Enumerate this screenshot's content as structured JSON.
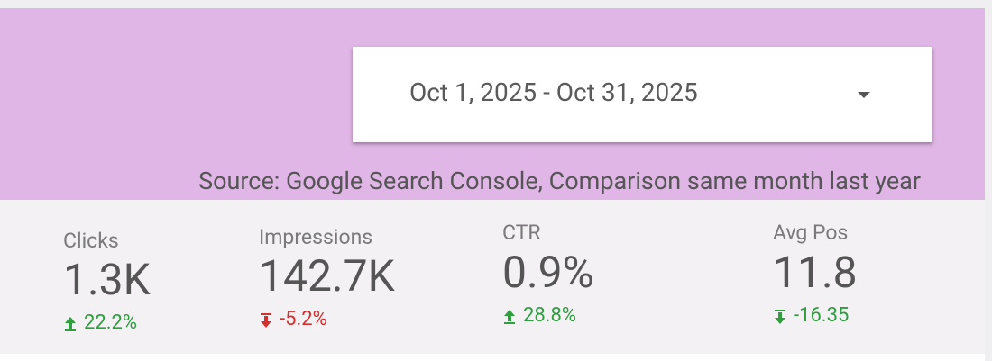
{
  "header": {
    "date_range": "Oct 1, 2025 - Oct 31, 2025",
    "source": "Source: Google Search Console, Comparison same month last year"
  },
  "metrics": [
    {
      "label": "Clicks",
      "value": "1.3K",
      "change": "22.2%"
    },
    {
      "label": "Impressions",
      "value": "142.7K",
      "change": "-5.2%"
    },
    {
      "label": "CTR",
      "value": "0.9%",
      "change": "28.8%"
    },
    {
      "label": "Avg Pos",
      "value": "11.8",
      "change": "-16.35"
    }
  ]
}
